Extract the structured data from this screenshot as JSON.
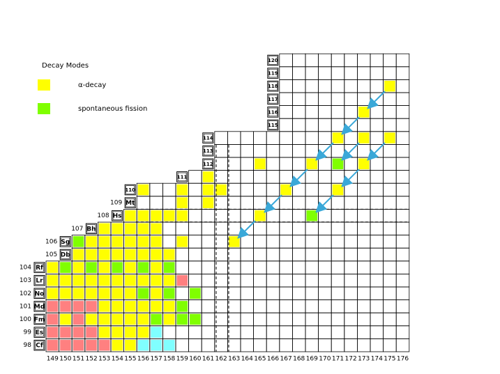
{
  "legend": {
    "title": "Decay Modes",
    "items": [
      {
        "label": "α-decay",
        "color": "#ffff00"
      },
      {
        "label": "spontaneous fission",
        "color": "#80ff00"
      }
    ]
  },
  "neutron_numbers": [
    149,
    150,
    151,
    152,
    153,
    154,
    155,
    156,
    157,
    158,
    159,
    160,
    161,
    162,
    163,
    164,
    165,
    166,
    167,
    168,
    169,
    170,
    171,
    172,
    173,
    174,
    175,
    176
  ],
  "rows": [
    {
      "z": 98,
      "symbol": "Cf"
    },
    {
      "z": 99,
      "symbol": "Es"
    },
    {
      "z": 100,
      "symbol": "Fm"
    },
    {
      "z": 101,
      "symbol": "Md"
    },
    {
      "z": 102,
      "symbol": "No"
    },
    {
      "z": 103,
      "symbol": "Lr"
    },
    {
      "z": 104,
      "symbol": "Rf"
    },
    {
      "z": 105,
      "symbol": "Db"
    },
    {
      "z": 106,
      "symbol": "Sg"
    },
    {
      "z": 107,
      "symbol": "Bh"
    },
    {
      "z": 108,
      "symbol": "Hs"
    },
    {
      "z": 109,
      "symbol": "Mt"
    },
    {
      "symbol": 110
    },
    {
      "symbol": 111
    },
    {
      "symbol": 112
    },
    {
      "symbol": 113
    },
    {
      "symbol": 114
    },
    {
      "symbol": 115
    },
    {
      "symbol": 116
    },
    {
      "symbol": 117
    },
    {
      "symbol": 118
    },
    {
      "symbol": 119
    },
    {
      "symbol": 120
    }
  ],
  "cells": [
    {
      "n": 149,
      "z": 98,
      "color": "#ff8080"
    },
    {
      "n": 150,
      "z": 98,
      "color": "#ff8080"
    },
    {
      "n": 151,
      "z": 98,
      "color": "#ff8080"
    },
    {
      "n": 152,
      "z": 98,
      "color": "#ff8080"
    },
    {
      "n": 153,
      "z": 98,
      "color": "#ff8080"
    },
    {
      "n": 154,
      "z": 98,
      "color": "#ffff00"
    },
    {
      "n": 155,
      "z": 98,
      "color": "#ffff00"
    },
    {
      "n": 156,
      "z": 98,
      "color": "#80ffff"
    },
    {
      "n": 157,
      "z": 98,
      "color": "#80ffff"
    },
    {
      "n": 158,
      "z": 98,
      "color": "#80ffff"
    },
    {
      "n": 149,
      "z": 99,
      "color": "#ff8080"
    },
    {
      "n": 150,
      "z": 99,
      "color": "#ff8080"
    },
    {
      "n": 151,
      "z": 99,
      "color": "#ff8080"
    },
    {
      "n": 152,
      "z": 99,
      "color": "#ff8080"
    },
    {
      "n": 153,
      "z": 99,
      "color": "#ffff00"
    },
    {
      "n": 154,
      "z": 99,
      "color": "#ffff00"
    },
    {
      "n": 155,
      "z": 99,
      "color": "#ffff00"
    },
    {
      "n": 156,
      "z": 99,
      "color": "#ffff00"
    },
    {
      "n": 157,
      "z": 99,
      "color": "#80ffff"
    },
    {
      "n": 149,
      "z": 100,
      "color": "#ff8080"
    },
    {
      "n": 150,
      "z": 100,
      "color": "#ffff00"
    },
    {
      "n": 151,
      "z": 100,
      "color": "#ff8080"
    },
    {
      "n": 152,
      "z": 100,
      "color": "#ffff00"
    },
    {
      "n": 153,
      "z": 100,
      "color": "#ffff00"
    },
    {
      "n": 154,
      "z": 100,
      "color": "#ffff00"
    },
    {
      "n": 155,
      "z": 100,
      "color": "#ffff00"
    },
    {
      "n": 156,
      "z": 100,
      "color": "#ffff00"
    },
    {
      "n": 157,
      "z": 100,
      "color": "#80ff00"
    },
    {
      "n": 158,
      "z": 100,
      "color": "#ffff00"
    },
    {
      "n": 159,
      "z": 100,
      "color": "#80ff00"
    },
    {
      "n": 160,
      "z": 100,
      "color": "#80ff00"
    },
    {
      "n": 149,
      "z": 101,
      "color": "#ff8080"
    },
    {
      "n": 150,
      "z": 101,
      "color": "#ff8080"
    },
    {
      "n": 151,
      "z": 101,
      "color": "#ff8080"
    },
    {
      "n": 152,
      "z": 101,
      "color": "#ff8080"
    },
    {
      "n": 153,
      "z": 101,
      "color": "#ffff00"
    },
    {
      "n": 154,
      "z": 101,
      "color": "#ffff00"
    },
    {
      "n": 155,
      "z": 101,
      "color": "#ffff00"
    },
    {
      "n": 156,
      "z": 101,
      "color": "#ffff00"
    },
    {
      "n": 157,
      "z": 101,
      "color": "#ffff00"
    },
    {
      "n": 158,
      "z": 101,
      "color": "#ffff00"
    },
    {
      "n": 159,
      "z": 101,
      "color": "#80ff00"
    },
    {
      "n": 149,
      "z": 102,
      "color": "#ffff00"
    },
    {
      "n": 150,
      "z": 102,
      "color": "#ffff00"
    },
    {
      "n": 151,
      "z": 102,
      "color": "#ffff00"
    },
    {
      "n": 152,
      "z": 102,
      "color": "#ffff00"
    },
    {
      "n": 153,
      "z": 102,
      "color": "#ffff00"
    },
    {
      "n": 154,
      "z": 102,
      "color": "#ffff00"
    },
    {
      "n": 155,
      "z": 102,
      "color": "#ffff00"
    },
    {
      "n": 156,
      "z": 102,
      "color": "#80ff00"
    },
    {
      "n": 157,
      "z": 102,
      "color": "#ffff00"
    },
    {
      "n": 158,
      "z": 102,
      "color": "#80ff00"
    },
    {
      "n": 160,
      "z": 102,
      "color": "#80ff00"
    },
    {
      "n": 149,
      "z": 103,
      "color": "#ffff00"
    },
    {
      "n": 150,
      "z": 103,
      "color": "#ffff00"
    },
    {
      "n": 151,
      "z": 103,
      "color": "#ffff00"
    },
    {
      "n": 152,
      "z": 103,
      "color": "#ffff00"
    },
    {
      "n": 153,
      "z": 103,
      "color": "#ffff00"
    },
    {
      "n": 154,
      "z": 103,
      "color": "#ffff00"
    },
    {
      "n": 155,
      "z": 103,
      "color": "#ffff00"
    },
    {
      "n": 156,
      "z": 103,
      "color": "#ffff00"
    },
    {
      "n": 157,
      "z": 103,
      "color": "#ffff00"
    },
    {
      "n": 158,
      "z": 103,
      "color": "#ffff00"
    },
    {
      "n": 159,
      "z": 103,
      "color": "#ff8080"
    },
    {
      "n": 149,
      "z": 104,
      "color": "#ffff00"
    },
    {
      "n": 150,
      "z": 104,
      "color": "#80ff00"
    },
    {
      "n": 151,
      "z": 104,
      "color": "#ffff00"
    },
    {
      "n": 152,
      "z": 104,
      "color": "#80ff00"
    },
    {
      "n": 153,
      "z": 104,
      "color": "#ffff00"
    },
    {
      "n": 154,
      "z": 104,
      "color": "#80ff00"
    },
    {
      "n": 155,
      "z": 104,
      "color": "#ffff00"
    },
    {
      "n": 156,
      "z": 104,
      "color": "#80ff00"
    },
    {
      "n": 157,
      "z": 104,
      "color": "#ffff00"
    },
    {
      "n": 158,
      "z": 104,
      "color": "#80ff00"
    },
    {
      "n": 151,
      "z": 105,
      "color": "#ffff00"
    },
    {
      "n": 152,
      "z": 105,
      "color": "#ffff00"
    },
    {
      "n": 153,
      "z": 105,
      "color": "#ffff00"
    },
    {
      "n": 154,
      "z": 105,
      "color": "#ffff00"
    },
    {
      "n": 155,
      "z": 105,
      "color": "#ffff00"
    },
    {
      "n": 156,
      "z": 105,
      "color": "#ffff00"
    },
    {
      "n": 157,
      "z": 105,
      "color": "#ffff00"
    },
    {
      "n": 158,
      "z": 105,
      "color": "#ffff00"
    },
    {
      "n": 151,
      "z": 106,
      "color": "#80ff00"
    },
    {
      "n": 152,
      "z": 106,
      "color": "#ffff00"
    },
    {
      "n": 153,
      "z": 106,
      "color": "#ffff00"
    },
    {
      "n": 154,
      "z": 106,
      "color": "#ffff00"
    },
    {
      "n": 155,
      "z": 106,
      "color": "#ffff00"
    },
    {
      "n": 156,
      "z": 106,
      "color": "#ffff00"
    },
    {
      "n": 157,
      "z": 106,
      "color": "#ffff00"
    },
    {
      "n": 159,
      "z": 106,
      "color": "#ffff00"
    },
    {
      "n": 163,
      "z": 106,
      "color": "#ffff00"
    },
    {
      "n": 153,
      "z": 107,
      "color": "#ffff00"
    },
    {
      "n": 154,
      "z": 107,
      "color": "#ffff00"
    },
    {
      "n": 155,
      "z": 107,
      "color": "#ffff00"
    },
    {
      "n": 156,
      "z": 107,
      "color": "#ffff00"
    },
    {
      "n": 157,
      "z": 107,
      "color": "#ffff00"
    },
    {
      "n": 155,
      "z": 108,
      "color": "#ffff00"
    },
    {
      "n": 156,
      "z": 108,
      "color": "#ffff00"
    },
    {
      "n": 157,
      "z": 108,
      "color": "#ffff00"
    },
    {
      "n": 158,
      "z": 108,
      "color": "#ffff00"
    },
    {
      "n": 159,
      "z": 108,
      "color": "#ffff00"
    },
    {
      "n": 165,
      "z": 108,
      "color": "#ffff00"
    },
    {
      "n": 169,
      "z": 108,
      "color": "#80ff00"
    },
    {
      "n": 159,
      "z": 109,
      "color": "#ffff00"
    },
    {
      "n": 161,
      "z": 109,
      "color": "#ffff00"
    },
    {
      "n": 156,
      "z": 110,
      "color": "#ffff00"
    },
    {
      "n": 159,
      "z": 110,
      "color": "#ffff00"
    },
    {
      "n": 161,
      "z": 110,
      "color": "#ffff00"
    },
    {
      "n": 162,
      "z": 110,
      "color": "#ffff00"
    },
    {
      "n": 167,
      "z": 110,
      "color": "#ffff00"
    },
    {
      "n": 171,
      "z": 110,
      "color": "#ffff00"
    },
    {
      "n": 161,
      "z": 111,
      "color": "#ffff00"
    },
    {
      "n": 165,
      "z": 112,
      "color": "#ffff00"
    },
    {
      "n": 169,
      "z": 112,
      "color": "#ffff00"
    },
    {
      "n": 171,
      "z": 112,
      "color": "#80ff00"
    },
    {
      "n": 173,
      "z": 112,
      "color": "#ffff00"
    },
    {
      "n": 171,
      "z": 114,
      "color": "#ffff00"
    },
    {
      "n": 173,
      "z": 114,
      "color": "#ffff00"
    },
    {
      "n": 175,
      "z": 114,
      "color": "#ffff00"
    },
    {
      "n": 173,
      "z": 116,
      "color": "#ffff00"
    },
    {
      "n": 175,
      "z": 118,
      "color": "#ffff00"
    }
  ]
}
